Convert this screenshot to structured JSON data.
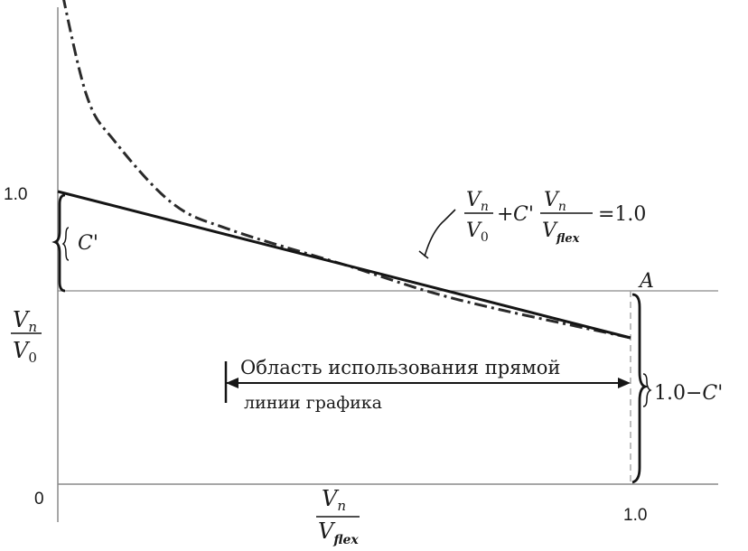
{
  "axes": {
    "y_tick_top": "1.0",
    "origin": "0",
    "x_tick_right": "1.0"
  },
  "y_axis_label": {
    "numerator": "V",
    "num_sub": "n",
    "denominator": "V",
    "den_sub": "0"
  },
  "x_axis_label": {
    "numerator": "V",
    "num_sub": "n",
    "denominator": "V",
    "den_sub": "flex"
  },
  "point_label": "A",
  "c_prime_label": "C'",
  "one_minus_c_label": {
    "lead": "1.0−",
    "var": "C'"
  },
  "equation": {
    "f1_num": "V",
    "f1_num_sub": "n",
    "f1_den": "V",
    "f1_den_sub": "0",
    "plus": "+",
    "coef": "C'",
    "f2_num": "V",
    "f2_num_sub": "n",
    "f2_den": "V",
    "f2_den_sub": "flex",
    "rhs": "=1.0"
  },
  "region_text": {
    "line1": "Область использования прямой",
    "line2": "линии графика"
  },
  "curves": [
    {
      "name": "straight-line",
      "style": "solid",
      "points": [
        [
          0,
          1.0
        ],
        [
          1.0,
          0.5
        ]
      ]
    },
    {
      "name": "dash-dot-curve",
      "style": "dash-dot",
      "points": [
        [
          0,
          1.75
        ],
        [
          0.05,
          1.33
        ],
        [
          0.1,
          1.17
        ],
        [
          0.2,
          0.96
        ],
        [
          0.3,
          0.87
        ],
        [
          0.5,
          0.75
        ],
        [
          0.7,
          0.63
        ],
        [
          1.0,
          0.5
        ]
      ]
    }
  ]
}
